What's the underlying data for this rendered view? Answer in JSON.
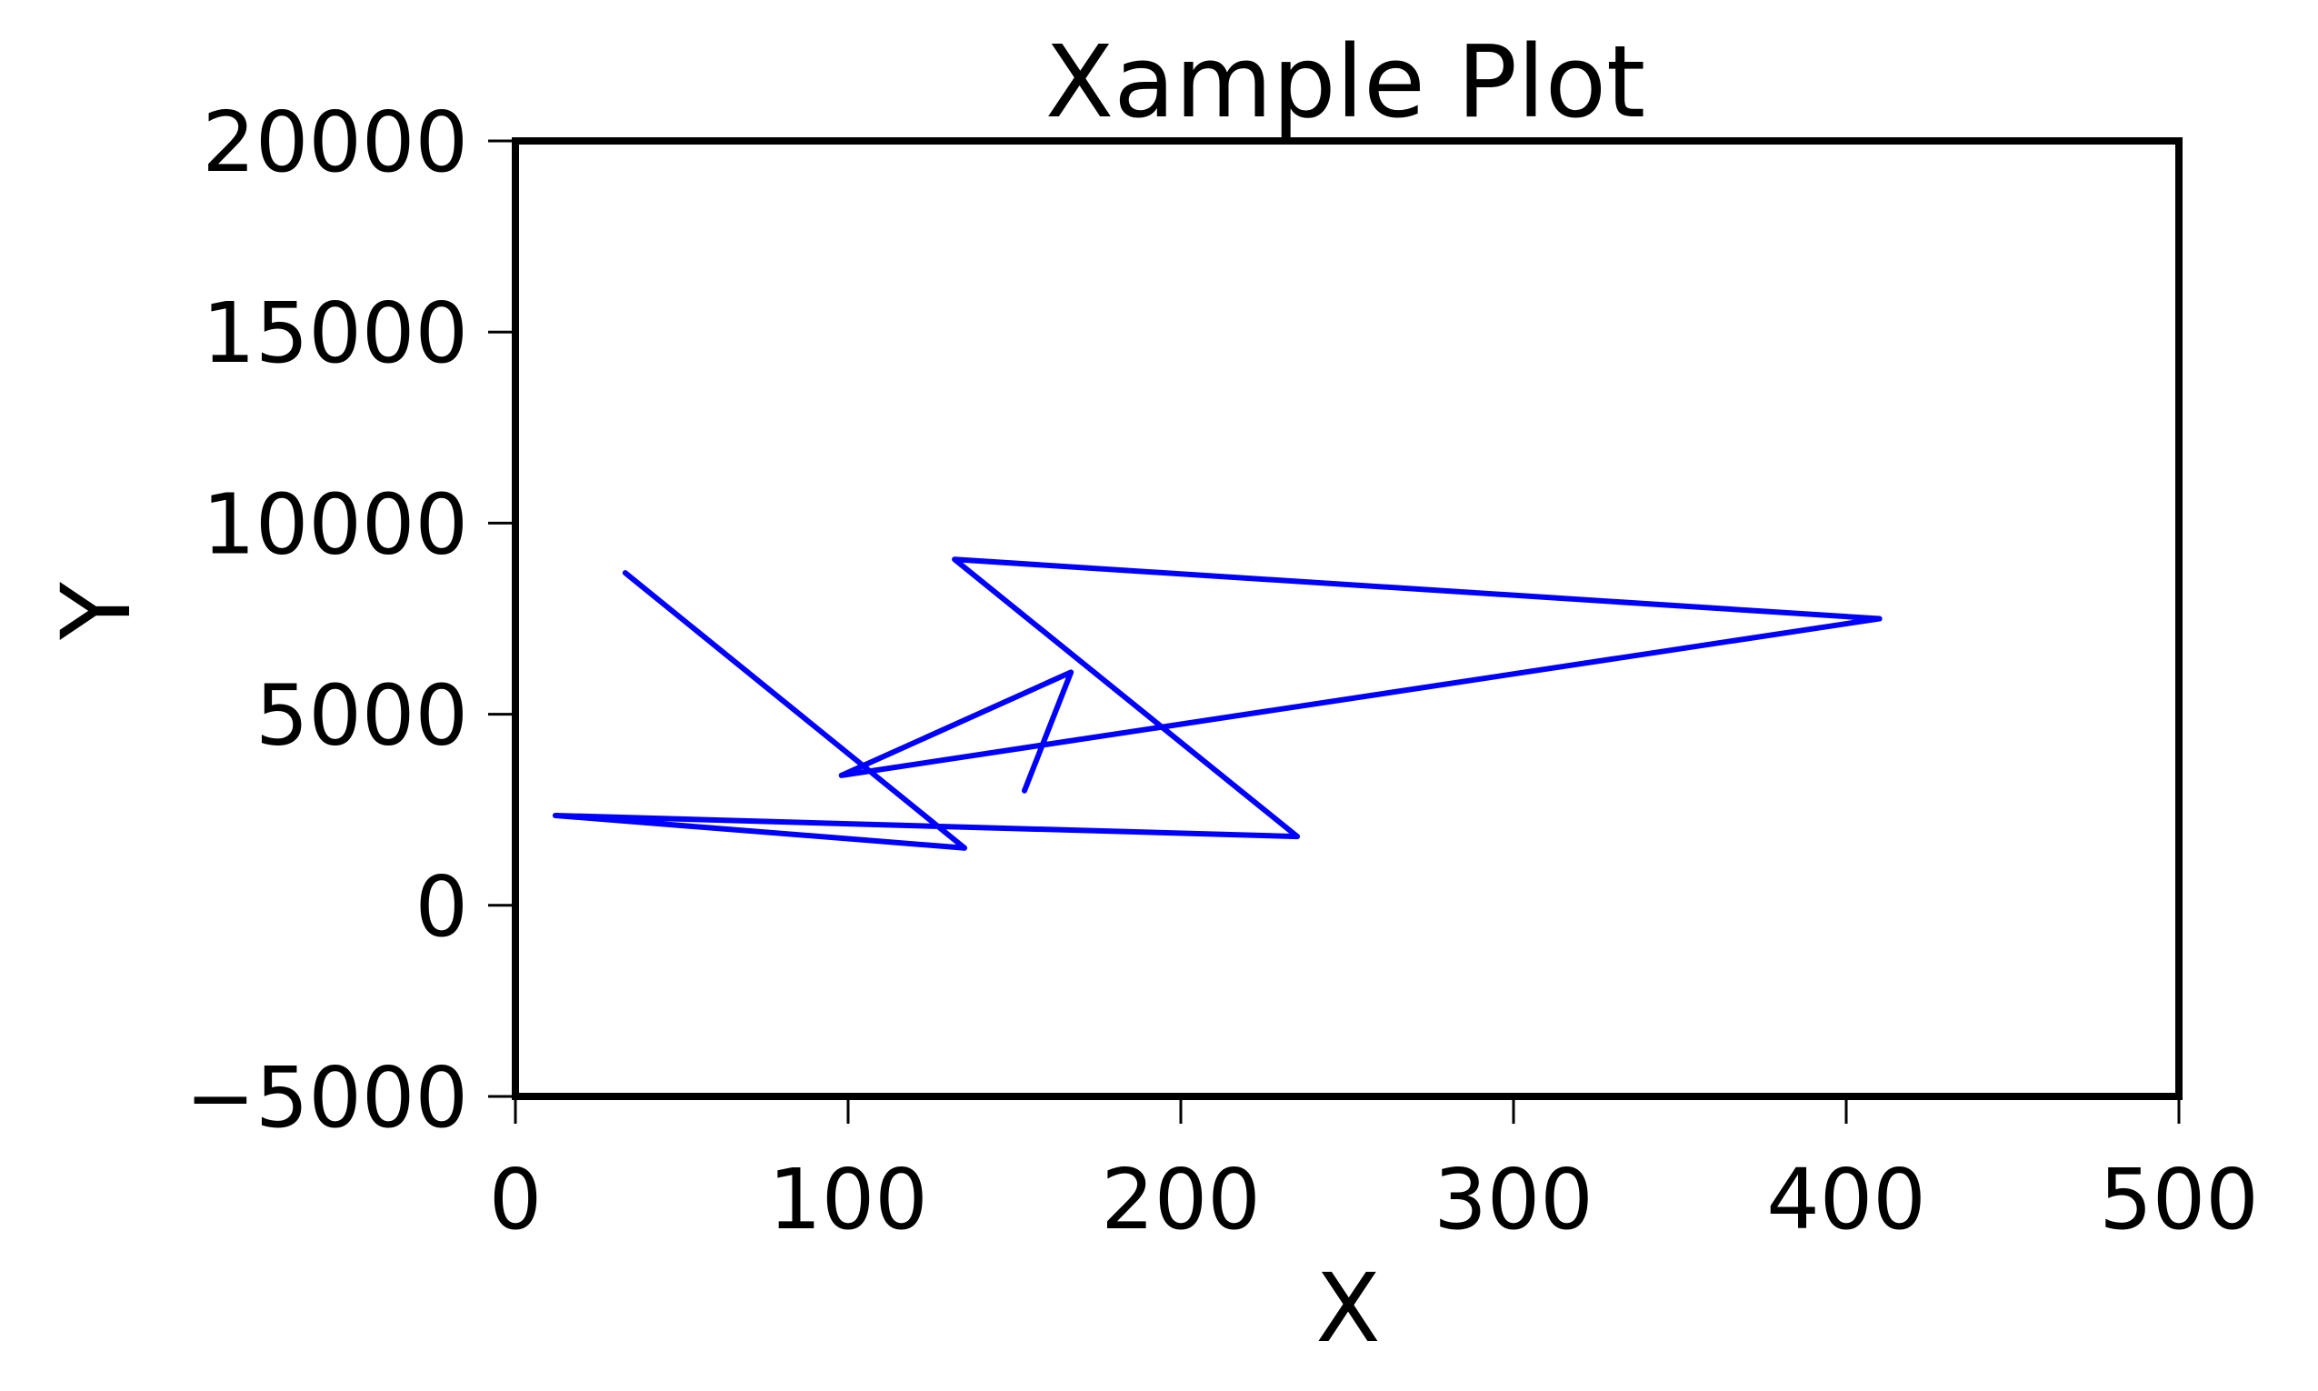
{
  "chart_data": {
    "type": "line",
    "title": "Xample Plot",
    "xlabel": "X",
    "ylabel": "Y",
    "xlim": [
      0,
      500
    ],
    "ylim": [
      -5000,
      20000
    ],
    "xticks": [
      0,
      100,
      200,
      300,
      400,
      500
    ],
    "yticks": [
      -5000,
      0,
      5000,
      10000,
      15000,
      20000
    ],
    "xtick_labels": [
      "0",
      "100",
      "200",
      "300",
      "400",
      "500"
    ],
    "ytick_labels": [
      "−5000",
      "0",
      "5000",
      "10000",
      "15000",
      "20000"
    ],
    "grid": false,
    "legend": "none",
    "series": [
      {
        "color": "#0000ff",
        "x": [
          33,
          135,
          12,
          235,
          132,
          410,
          98,
          167,
          153
        ],
        "y": [
          8700,
          1500,
          2350,
          1800,
          9050,
          7500,
          3400,
          6100,
          3000
        ]
      }
    ]
  }
}
